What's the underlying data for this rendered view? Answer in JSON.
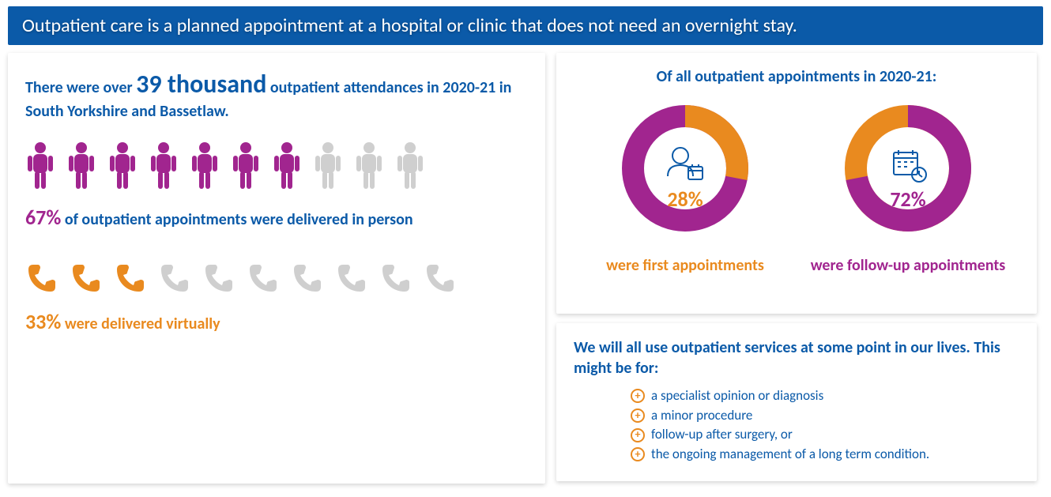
{
  "colors": {
    "banner_bg": "#0b5aa8",
    "blue": "#0b5aa8",
    "purple": "#a1258f",
    "orange": "#e98a1f",
    "grey": "#cfcfcf",
    "white": "#ffffff",
    "card_shadow": "rgba(0,0,0,0.18)"
  },
  "banner": "Outpatient care is a planned appointment at a hospital or clinic that does not need an overnight stay.",
  "left": {
    "intro_prefix": "There were over ",
    "intro_big": "39 thousand",
    "intro_suffix": " outpatient attendances in 2020-21 in South Yorkshire and Bassetlaw.",
    "people": {
      "total": 10,
      "filled": 7,
      "fill_color": "#a1258f",
      "empty_color": "#cfcfcf"
    },
    "in_person_pct": "67%",
    "in_person_text": " of outpatient appointments were delivered in person",
    "phones": {
      "total": 10,
      "filled": 3,
      "fill_color": "#e98a1f",
      "empty_color": "#cfcfcf"
    },
    "virtual_pct": "33%",
    "virtual_text": " were delivered virtually"
  },
  "right_top": {
    "title": "Of all outpatient appointments in 2020-21:",
    "donut1": {
      "type": "donut",
      "value": 28,
      "pct_label": "28%",
      "label": "were first appointments",
      "primary_color": "#e98a1f",
      "secondary_color": "#a1258f",
      "inner_icon": "doctor-calendar"
    },
    "donut2": {
      "type": "donut",
      "value": 72,
      "pct_label": "72%",
      "label": "were follow-up appointments",
      "primary_color": "#a1258f",
      "secondary_color": "#e98a1f",
      "inner_icon": "calendar-clock"
    },
    "ring_thickness": 28,
    "ring_outer_radius": 80
  },
  "right_bottom": {
    "title": "We will all use outpatient services at some point in our lives. This might be for:",
    "reasons": [
      "a specialist opinion or diagnosis",
      "a minor procedure",
      "follow-up after surgery, or",
      "the ongoing management of a long term condition."
    ]
  }
}
